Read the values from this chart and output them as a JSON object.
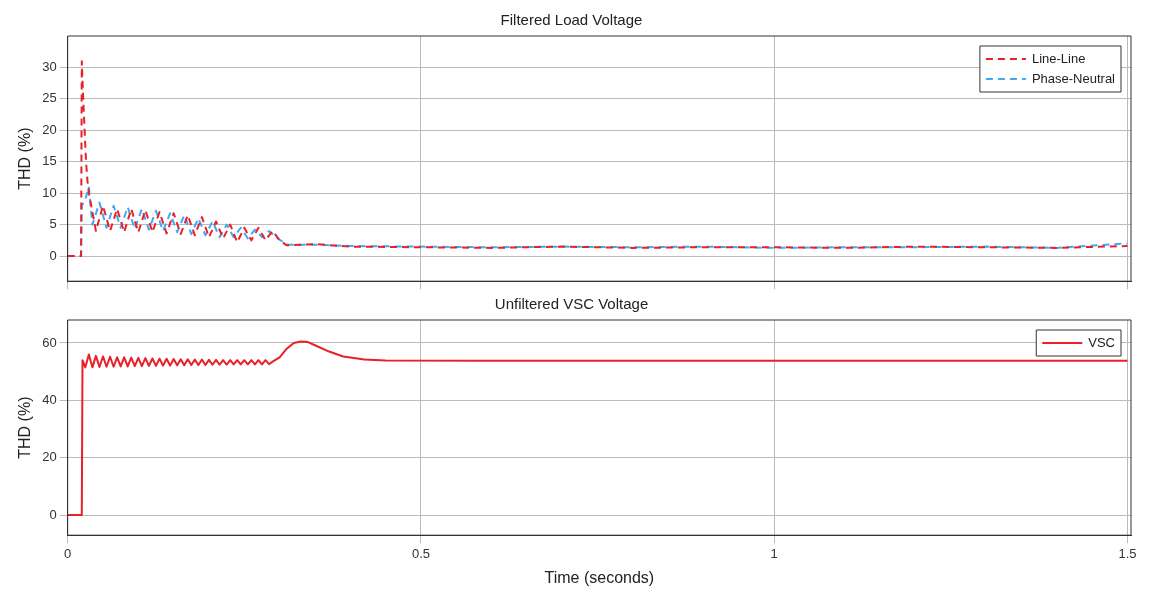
{
  "chart_data": [
    {
      "type": "line",
      "title": "Filtered Load Voltage",
      "ylabel": "THD (%)",
      "xlim": [
        0,
        1.505
      ],
      "xticks": [
        0,
        0.5,
        1,
        1.5
      ],
      "ylim": [
        -4,
        35
      ],
      "yticks": [
        0,
        5,
        10,
        15,
        20,
        25,
        30
      ],
      "tick_labels": "y",
      "grid": true,
      "legend": "top right",
      "line_style": "dashed",
      "series": [
        {
          "name": "Line-Line",
          "color": "#e8202a",
          "x": [
            0,
            0.019,
            0.02,
            0.022,
            0.024,
            0.026,
            0.028,
            0.03,
            0.04,
            0.05,
            0.06,
            0.07,
            0.08,
            0.09,
            0.1,
            0.11,
            0.12,
            0.13,
            0.14,
            0.15,
            0.16,
            0.17,
            0.18,
            0.19,
            0.2,
            0.21,
            0.22,
            0.23,
            0.24,
            0.25,
            0.26,
            0.27,
            0.28,
            0.29,
            0.3,
            0.31,
            0.35,
            0.4,
            0.5,
            0.6,
            0.7,
            0.8,
            0.9,
            1.0,
            1.1,
            1.2,
            1.3,
            1.4,
            1.5
          ],
          "values": [
            0,
            0,
            31,
            25,
            20,
            15,
            12,
            10,
            4,
            8,
            4,
            7.5,
            3.8,
            7.5,
            3.8,
            7.3,
            3.8,
            7,
            3.6,
            6.8,
            3.5,
            6.5,
            3.3,
            6.2,
            3,
            5.5,
            2.8,
            5,
            2.2,
            4.5,
            2.5,
            4.5,
            2.5,
            4,
            2.5,
            1.7,
            1.9,
            1.5,
            1.4,
            1.3,
            1.5,
            1.3,
            1.4,
            1.4,
            1.3,
            1.5,
            1.4,
            1.3,
            1.6
          ]
        },
        {
          "name": "Phase-Neutral",
          "color": "#3fa9f5",
          "x": [
            0,
            0.019,
            0.02,
            0.025,
            0.03,
            0.035,
            0.045,
            0.055,
            0.065,
            0.075,
            0.085,
            0.095,
            0.105,
            0.115,
            0.125,
            0.135,
            0.145,
            0.155,
            0.165,
            0.175,
            0.185,
            0.195,
            0.205,
            0.215,
            0.225,
            0.235,
            0.245,
            0.255,
            0.265,
            0.275,
            0.285,
            0.295,
            0.31,
            0.35,
            0.4,
            0.5,
            0.6,
            0.7,
            0.8,
            0.9,
            1.0,
            1.1,
            1.2,
            1.3,
            1.4,
            1.5
          ],
          "values": [
            0,
            0,
            8,
            9,
            11,
            5,
            8.5,
            4.5,
            8,
            4.5,
            7.8,
            4.3,
            7.5,
            4.2,
            7.2,
            4,
            6.8,
            3.8,
            6.5,
            3.5,
            6,
            3.3,
            5.5,
            3,
            5,
            3,
            4.5,
            2.8,
            4.2,
            3,
            4,
            3,
            1.8,
            1.8,
            1.6,
            1.5,
            1.4,
            1.5,
            1.4,
            1.5,
            1.3,
            1.4,
            1.4,
            1.5,
            1.3,
            2
          ]
        }
      ]
    },
    {
      "type": "line",
      "title": "Unfiltered VSC Voltage",
      "xlabel": "Time (seconds)",
      "ylabel": "THD (%)",
      "xlim": [
        0,
        1.505
      ],
      "xticks": [
        0,
        0.5,
        1,
        1.5
      ],
      "ylim": [
        -7,
        68
      ],
      "yticks": [
        0,
        20,
        40,
        60
      ],
      "grid": true,
      "legend": "top right",
      "line_style": "solid",
      "series": [
        {
          "name": "VSC",
          "color": "#e8202a",
          "x": [
            0,
            0.02,
            0.021,
            0.025,
            0.03,
            0.035,
            0.04,
            0.045,
            0.05,
            0.055,
            0.06,
            0.065,
            0.07,
            0.075,
            0.08,
            0.085,
            0.09,
            0.095,
            0.1,
            0.105,
            0.11,
            0.115,
            0.12,
            0.125,
            0.13,
            0.135,
            0.14,
            0.145,
            0.15,
            0.155,
            0.16,
            0.165,
            0.17,
            0.175,
            0.18,
            0.185,
            0.19,
            0.195,
            0.2,
            0.205,
            0.21,
            0.215,
            0.22,
            0.225,
            0.23,
            0.235,
            0.24,
            0.245,
            0.25,
            0.255,
            0.26,
            0.265,
            0.27,
            0.275,
            0.28,
            0.285,
            0.29,
            0.3,
            0.31,
            0.32,
            0.33,
            0.34,
            0.35,
            0.37,
            0.39,
            0.42,
            0.45,
            0.6,
            1.0,
            1.5
          ],
          "values": [
            0,
            0,
            54,
            51.5,
            56,
            51.5,
            55.5,
            51.6,
            55.3,
            51.7,
            55.2,
            51.7,
            55,
            51.8,
            55,
            51.8,
            54.9,
            51.9,
            54.8,
            51.9,
            54.7,
            52,
            54.6,
            52,
            54.5,
            52.1,
            54.5,
            52.1,
            54.4,
            52.2,
            54.3,
            52.2,
            54.3,
            52.3,
            54.2,
            52.3,
            54.2,
            52.3,
            54.1,
            52.4,
            54.1,
            52.4,
            54,
            52.4,
            54,
            52.5,
            54,
            52.5,
            54,
            52.5,
            54,
            52.5,
            54,
            52.5,
            54,
            52.6,
            53.5,
            55,
            58,
            60,
            60.5,
            60.3,
            59.2,
            57,
            55.3,
            54.2,
            53.9,
            53.8,
            53.8,
            53.8
          ]
        }
      ]
    }
  ]
}
